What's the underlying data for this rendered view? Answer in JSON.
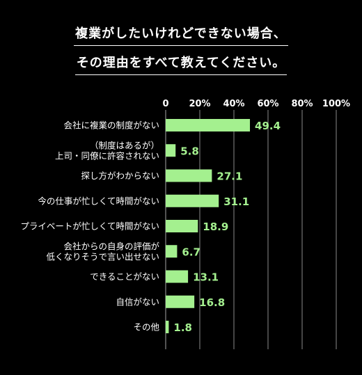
{
  "title_lines": [
    "複業がしたいけれどできない場合、",
    "その理由をすべて教えてください。"
  ],
  "colors": {
    "background": "#000000",
    "bar": "#a4f08f",
    "value": "#a4f08f",
    "text": "#ffffff",
    "grid": "#8a8a8a"
  },
  "chart_data": {
    "type": "bar",
    "orientation": "horizontal",
    "title": "複業がしたいけれどできない場合、その理由をすべて教えてください。",
    "xlim": [
      0,
      100
    ],
    "ticks": [
      "0",
      "20%",
      "40%",
      "60%",
      "80%",
      "100%"
    ],
    "tick_values": [
      0,
      20,
      40,
      60,
      80,
      100
    ],
    "categories": [
      [
        "会社に複業の制度がない"
      ],
      [
        "（制度はあるが）",
        "上司・同僚に許容されない"
      ],
      [
        "探し方がわからない"
      ],
      [
        "今の仕事が忙しくて時間がない"
      ],
      [
        "プライベートが忙しくて時間がない"
      ],
      [
        "会社からの自身の評価が",
        "低くなりそうで言い出せない"
      ],
      [
        "できることがない"
      ],
      [
        "自信がない"
      ],
      [
        "その他"
      ]
    ],
    "values": [
      49.4,
      5.8,
      27.1,
      31.1,
      18.9,
      6.7,
      13.1,
      16.8,
      1.8
    ],
    "value_labels": [
      "49.4",
      "5.8",
      "27.1",
      "31.1",
      "18.9",
      "6.7",
      "13.1",
      "16.8",
      "1.8"
    ],
    "grid": true,
    "legend": "none"
  }
}
